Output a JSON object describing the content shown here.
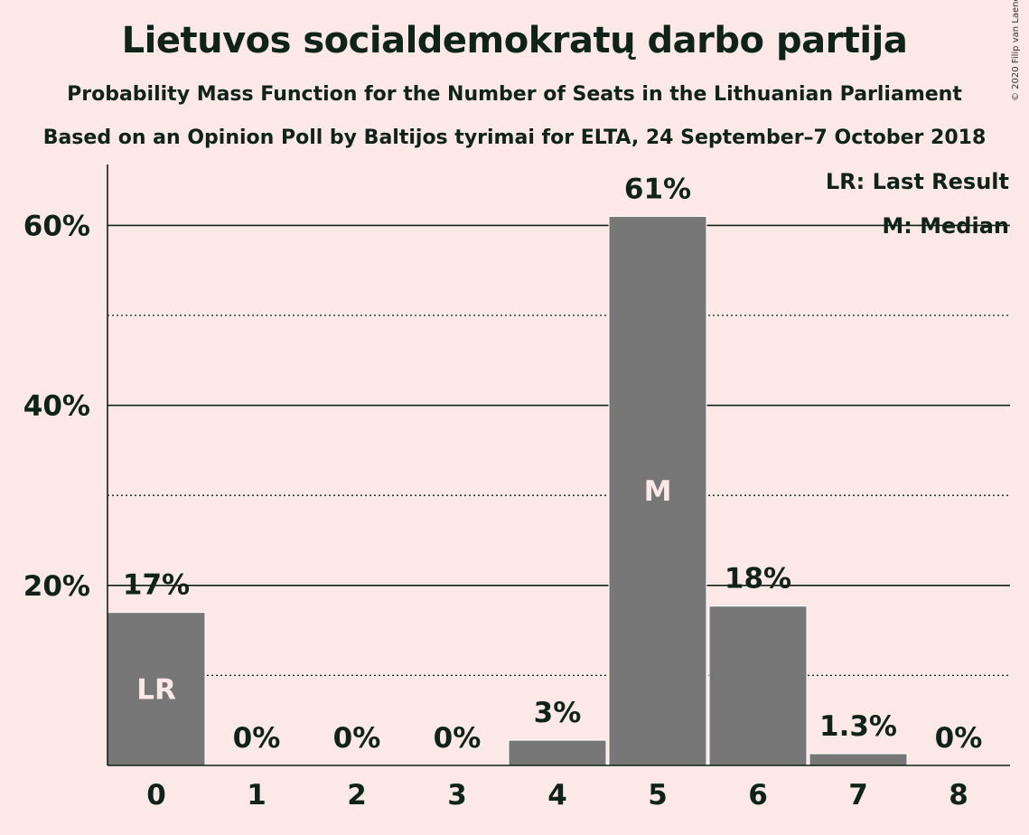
{
  "title": "Lietuvos socialdemokratų darbo partija",
  "subtitle1": "Probability Mass Function for the Number of Seats in the Lithuanian Parliament",
  "subtitle2": "Based on an Opinion Poll by Baltijos tyrimai for ELTA, 24 September–7 October 2018",
  "copyright": "© 2020 Filip van Laenen",
  "chart_data": {
    "type": "bar",
    "categories": [
      "0",
      "1",
      "2",
      "3",
      "4",
      "5",
      "6",
      "7",
      "8"
    ],
    "values": [
      17,
      0,
      0,
      0,
      2.8,
      61,
      17.7,
      1.3,
      0
    ],
    "value_labels": [
      "17%",
      "0%",
      "0%",
      "0%",
      "3%",
      "61%",
      "18%",
      "1.3%",
      "0%"
    ],
    "bar_markers": {
      "0": "LR",
      "5": "M"
    },
    "ylim": [
      0,
      66
    ],
    "y_ticks": [
      20,
      40,
      60
    ],
    "y_tick_labels": [
      "20%",
      "40%",
      "60%"
    ],
    "minor_gridlines": [
      10,
      30,
      50
    ],
    "grid": true,
    "legend": [
      "LR: Last Result",
      "M: Median"
    ],
    "legend_position": "top-right",
    "colors": {
      "background": "#fde8e8",
      "bar": "#777777",
      "bar_edge": "#ffffff",
      "text": "#0f2318",
      "marker_text": "#fde8e8"
    }
  }
}
